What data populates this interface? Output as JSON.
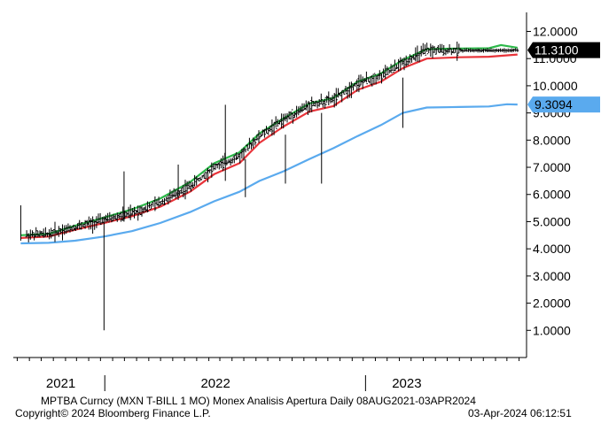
{
  "footer": {
    "line1": "MPTBA Curncy (MXN T-BILL    1 MO) Monex Analisis Apertura  Daily 08AUG2021-03APR2024",
    "copyright": "Copyright© 2024 Bloomberg Finance L.P.",
    "timestamp": "03-Apr-2024 06:12:51"
  },
  "chart_data": {
    "type": "line",
    "x_range": [
      "2020-09-21",
      "2024-04-20"
    ],
    "ylim": [
      0.0,
      12.7
    ],
    "y_ticks": [
      "1.0000",
      "2.0000",
      "3.0000",
      "4.0000",
      "5.0000",
      "6.0000",
      "7.0000",
      "8.0000",
      "9.0000",
      "10.0000",
      "11.0000",
      "12.0000"
    ],
    "year_labels": [
      {
        "label": "2021",
        "date": "2021-01-20"
      },
      {
        "label": "2022",
        "date": "2022-02-18"
      },
      {
        "label": "2023",
        "date": "2023-06-20"
      }
    ],
    "year_separators": [
      "2021-05-12",
      "2023-03-07"
    ],
    "grid": false,
    "last_value_labels": [
      {
        "text": "11.3100",
        "value": 11.31,
        "fill": "#000000",
        "text_color": "#ffffff"
      },
      {
        "text": "9.3094",
        "value": 9.3094,
        "fill": "#5aaaee",
        "text_color": "#000000"
      }
    ],
    "series": [
      {
        "color": "#000000",
        "style": "ohlc",
        "x": [
          "2020-10-25",
          "2020-12-20",
          "2021-02-25",
          "2021-05-10",
          "2021-07-20",
          "2021-09-30",
          "2021-12-15",
          "2022-02-15",
          "2022-04-20",
          "2022-06-10",
          "2022-08-10",
          "2022-10-15",
          "2022-12-15",
          "2023-02-15",
          "2023-04-15",
          "2023-06-10",
          "2023-08-10",
          "2023-11-01",
          "2024-01-15",
          "2024-03-28"
        ],
        "y": [
          4.5,
          4.55,
          4.8,
          5.05,
          5.3,
          5.7,
          6.3,
          7.0,
          7.4,
          8.15,
          8.75,
          9.3,
          9.5,
          10.1,
          10.35,
          10.85,
          11.3,
          11.3,
          11.3,
          11.31
        ]
      },
      {
        "color": "#2db84a",
        "style": "line",
        "x": [
          "2020-10-10",
          "2020-12-20",
          "2021-02-25",
          "2021-05-10",
          "2021-07-20",
          "2021-09-30",
          "2021-12-15",
          "2022-02-15",
          "2022-04-20",
          "2022-06-10",
          "2022-08-10",
          "2022-10-15",
          "2022-12-15",
          "2023-02-15",
          "2023-04-15",
          "2023-06-10",
          "2023-08-10",
          "2023-11-01",
          "2024-01-15",
          "2024-02-15",
          "2024-03-28"
        ],
        "y": [
          4.5,
          4.55,
          4.85,
          5.15,
          5.45,
          5.85,
          6.45,
          7.15,
          7.55,
          8.25,
          8.8,
          9.35,
          9.55,
          10.15,
          10.45,
          10.95,
          11.35,
          11.37,
          11.38,
          11.5,
          11.4
        ]
      },
      {
        "color": "#e8343a",
        "style": "line",
        "x": [
          "2020-10-10",
          "2020-12-20",
          "2021-02-25",
          "2021-05-10",
          "2021-07-20",
          "2021-09-30",
          "2021-12-15",
          "2022-02-15",
          "2022-04-20",
          "2022-06-10",
          "2022-08-10",
          "2022-10-15",
          "2022-12-15",
          "2023-02-15",
          "2023-04-15",
          "2023-06-10",
          "2023-08-10",
          "2023-11-01",
          "2024-01-15",
          "2024-03-28"
        ],
        "y": [
          4.4,
          4.45,
          4.7,
          4.95,
          5.2,
          5.55,
          6.1,
          6.75,
          7.15,
          7.9,
          8.5,
          9.05,
          9.25,
          9.85,
          10.15,
          10.65,
          11.0,
          11.05,
          11.07,
          11.15
        ]
      },
      {
        "color": "#5aaaee",
        "style": "line",
        "x": [
          "2020-10-10",
          "2020-12-20",
          "2021-02-25",
          "2021-05-10",
          "2021-07-20",
          "2021-09-30",
          "2021-12-15",
          "2022-02-15",
          "2022-04-20",
          "2022-06-10",
          "2022-08-10",
          "2022-10-15",
          "2022-12-15",
          "2023-02-15",
          "2023-04-15",
          "2023-06-10",
          "2023-08-10",
          "2023-11-01",
          "2024-01-15",
          "2024-03-01",
          "2024-03-28"
        ],
        "y": [
          4.2,
          4.22,
          4.3,
          4.45,
          4.65,
          4.95,
          5.35,
          5.75,
          6.1,
          6.5,
          6.85,
          7.3,
          7.7,
          8.15,
          8.55,
          9.0,
          9.2,
          9.22,
          9.24,
          9.32,
          9.31
        ]
      }
    ],
    "spikes": [
      {
        "date": "2020-10-10",
        "low": 4.3,
        "high": 5.6
      },
      {
        "date": "2021-05-10",
        "low": 1.0,
        "high": 5.2
      },
      {
        "date": "2021-06-30",
        "low": 5.0,
        "high": 6.85
      },
      {
        "date": "2021-11-15",
        "low": 5.8,
        "high": 7.1
      },
      {
        "date": "2022-03-15",
        "low": 6.5,
        "high": 9.3
      },
      {
        "date": "2022-05-05",
        "low": 5.9,
        "high": 7.3
      },
      {
        "date": "2022-08-15",
        "low": 6.4,
        "high": 8.2
      },
      {
        "date": "2022-11-15",
        "low": 6.4,
        "high": 9.0
      },
      {
        "date": "2023-06-10",
        "low": 8.45,
        "high": 10.3
      }
    ]
  }
}
